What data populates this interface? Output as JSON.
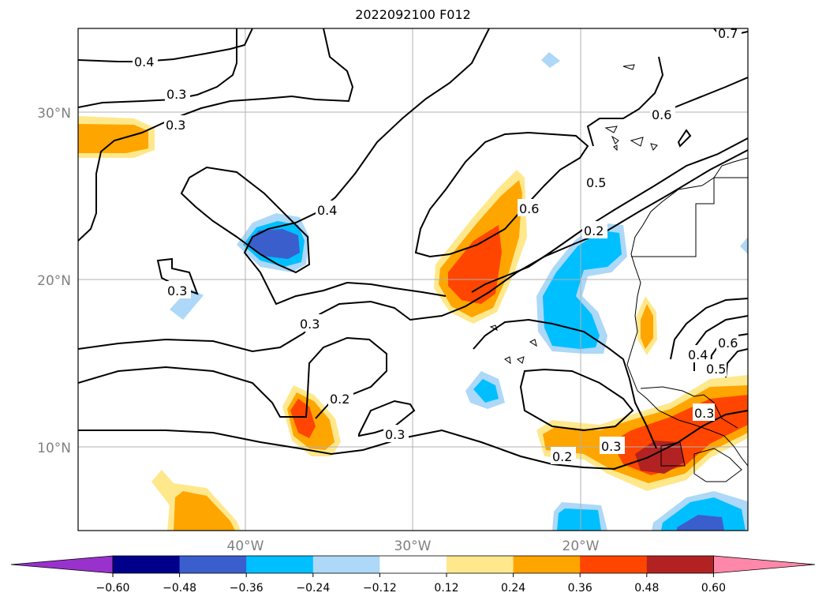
{
  "title": "2022092100 F012",
  "map": {
    "latitude_labels": [
      "30°N",
      "20°N",
      "10°N"
    ],
    "longitude_labels": [
      "40°W",
      "30°W",
      "20°W"
    ],
    "contour_labels": [
      "0.4",
      "0.3",
      "0.3",
      "0.4",
      "0.3",
      "0.3",
      "0.2",
      "0.3",
      "0.6",
      "0.5",
      "0.6",
      "0.2",
      "0.3",
      "0.2",
      "0.3",
      "0.7",
      "0.4",
      "0.5",
      "0.6"
    ]
  },
  "colorbar": {
    "tick_labels": [
      "−0.60",
      "−0.48",
      "−0.36",
      "−0.24",
      "−0.12",
      "0.12",
      "0.24",
      "0.36",
      "0.48",
      "0.60"
    ],
    "colors": [
      "#9932cc",
      "#00008b",
      "#3a5fcd",
      "#00bfff",
      "#add8f7",
      "#ffffff",
      "#ffe88c",
      "#ffa500",
      "#ff4500",
      "#b22222",
      "#ff88aa"
    ]
  }
}
